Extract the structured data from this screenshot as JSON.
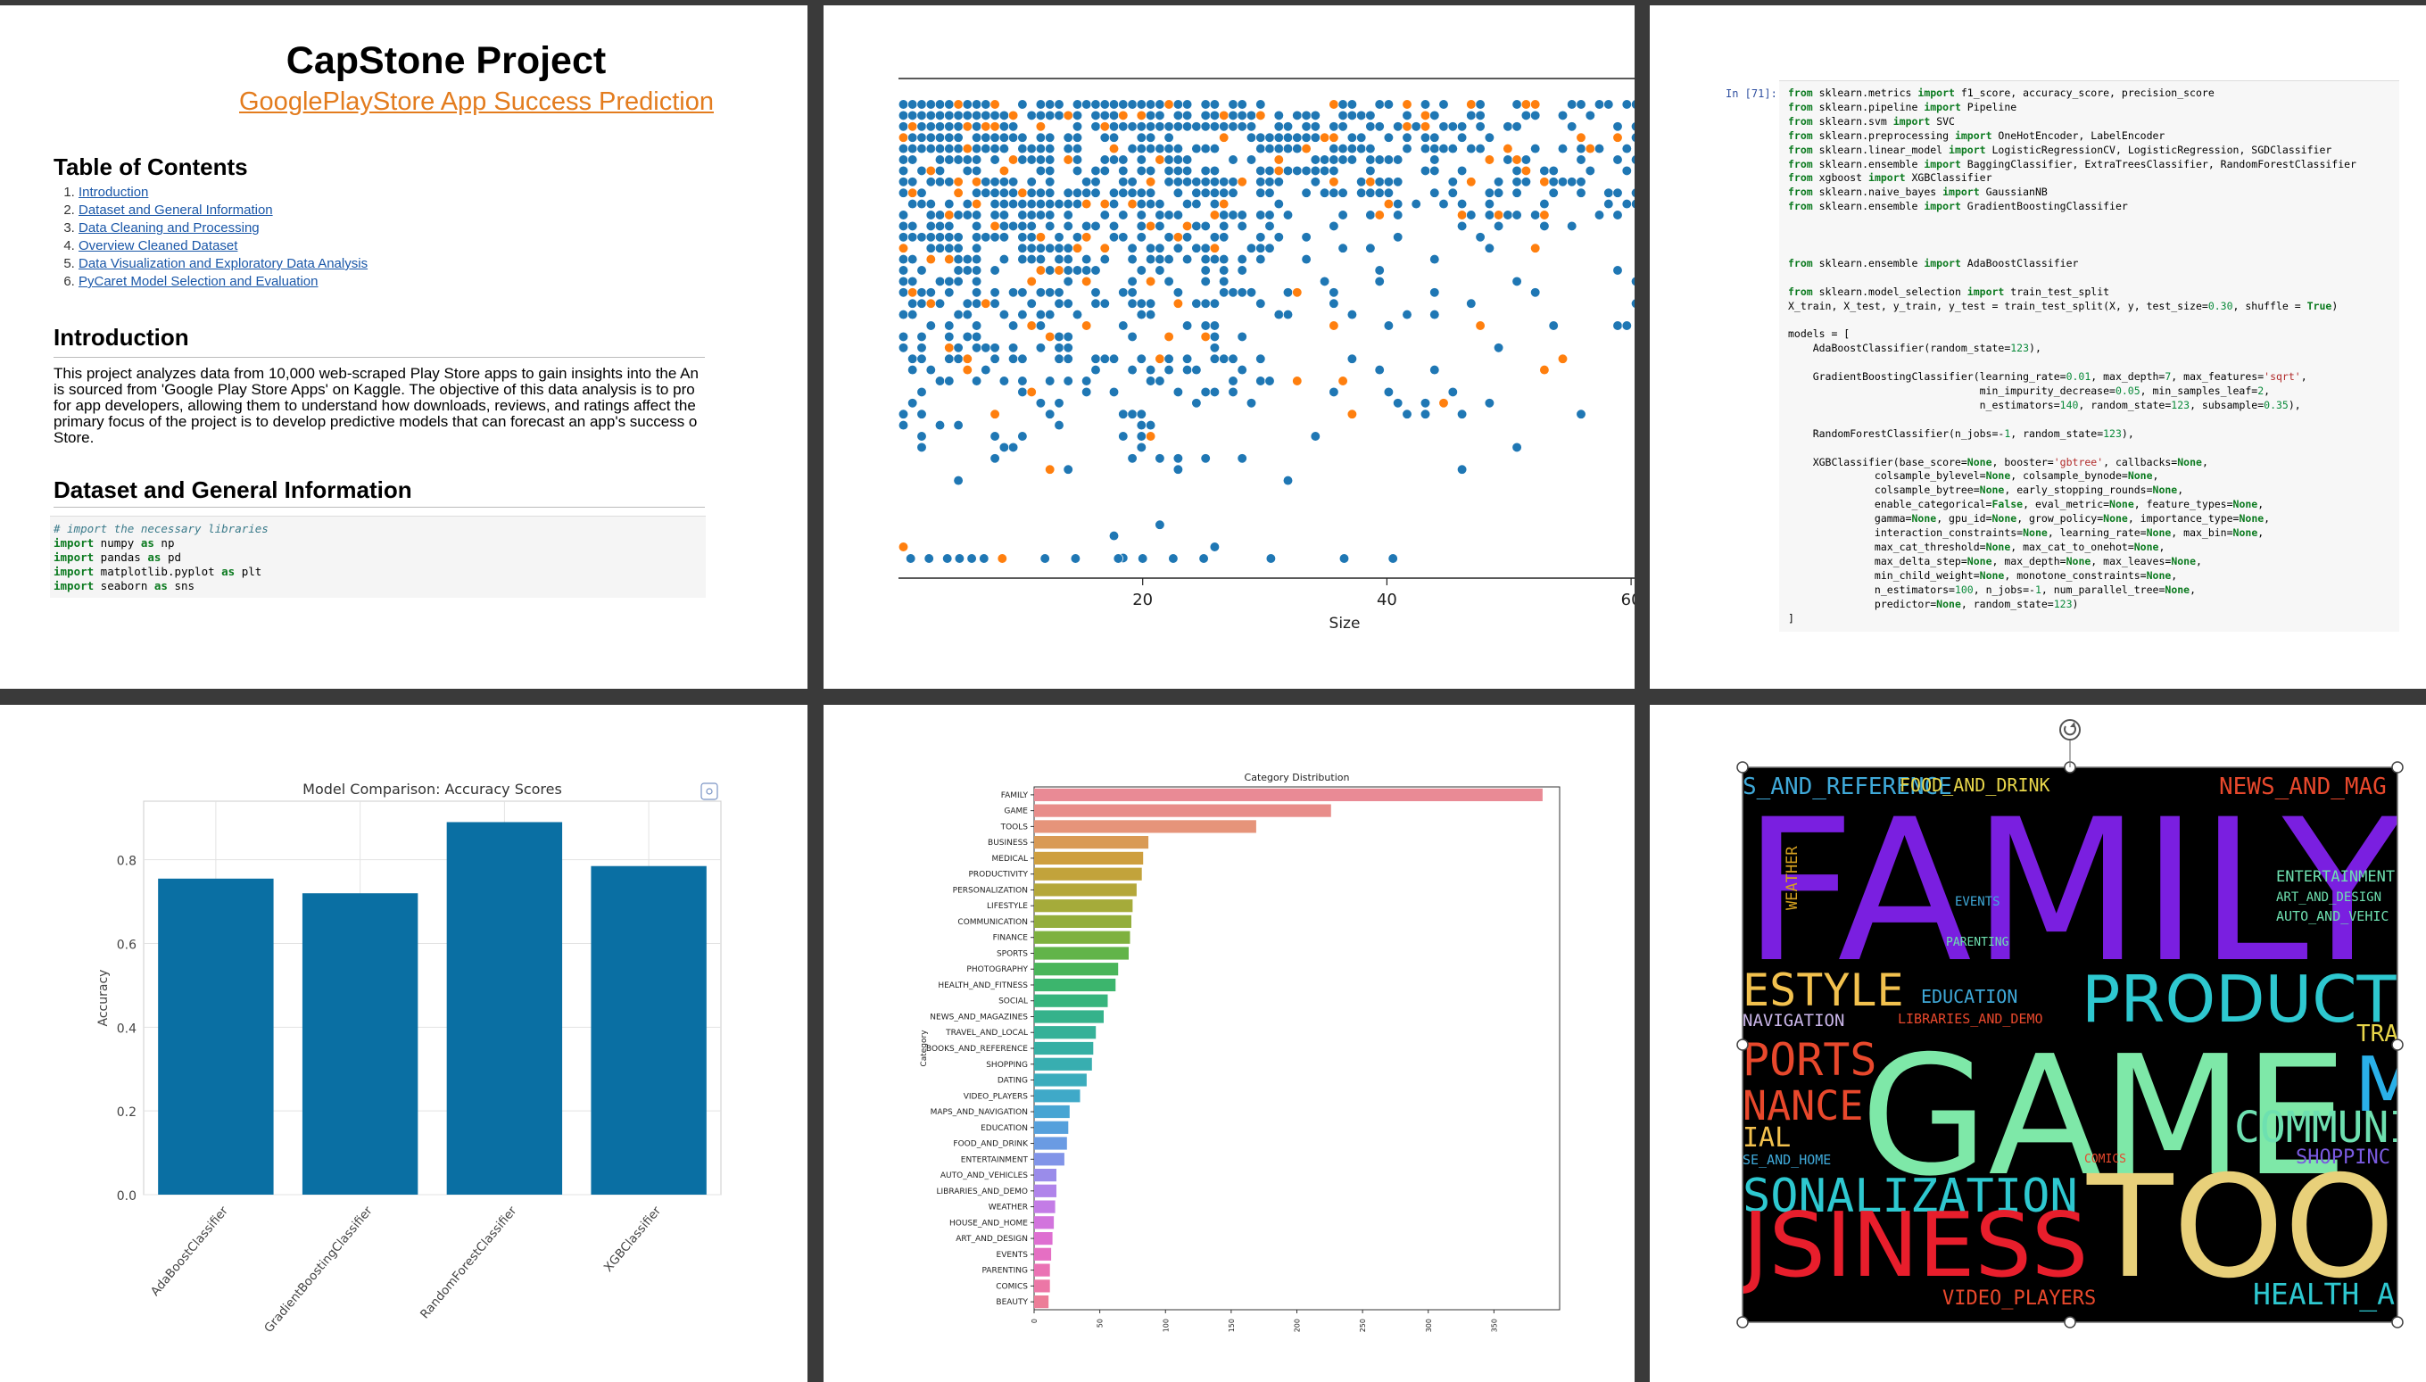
{
  "notebook": {
    "title": "CapStone Project",
    "subtitle": "GooglePlayStore App Success Prediction",
    "toc_heading": "Table of Contents",
    "toc": [
      {
        "num": "1.",
        "label": "Introduction"
      },
      {
        "num": "2.",
        "label": "Dataset and General Information"
      },
      {
        "num": "3.",
        "label": "Data Cleaning and Processing"
      },
      {
        "num": "4.",
        "label": "Overview Cleaned Dataset"
      },
      {
        "num": "5.",
        "label": "Data Visualization and Exploratory Data Analysis"
      },
      {
        "num": "6.",
        "label": "PyCaret Model Selection and Evaluation"
      }
    ],
    "intro_heading": "Introduction",
    "intro_lines": [
      "This project analyzes data from 10,000 web-scraped Play Store apps to gain insights into the An",
      "is sourced from 'Google Play Store Apps' on Kaggle. The objective of this data analysis is to pro",
      "for app developers, allowing them to understand how downloads, reviews, and ratings affect the",
      "primary focus of the project is to develop predictive models that can forecast an app's success o",
      "Store."
    ],
    "dataset_heading": "Dataset and General Information",
    "code_comment": "# import the necessary libraries",
    "imports": [
      {
        "kw1": "import",
        "mod": " numpy ",
        "kw2": "as",
        "alias": " np"
      },
      {
        "kw1": "import",
        "mod": " pandas ",
        "kw2": "as",
        "alias": " pd"
      },
      {
        "kw1": "import",
        "mod": " matplotlib.pyplot ",
        "kw2": "as",
        "alias": " plt"
      },
      {
        "kw1": "import",
        "mod": " seaborn ",
        "kw2": "as",
        "alias": " sns"
      }
    ]
  },
  "code_cell": {
    "prompt": "In [71]:",
    "lines": [
      "from sklearn.metrics import f1_score, accuracy_score, precision_score",
      "from sklearn.pipeline import Pipeline",
      "from sklearn.svm import SVC",
      "from sklearn.preprocessing import OneHotEncoder, LabelEncoder",
      "from sklearn.linear_model import LogisticRegressionCV, LogisticRegression, SGDClassifier",
      "from sklearn.ensemble import BaggingClassifier, ExtraTreesClassifier, RandomForestClassifier",
      "from xgboost import XGBClassifier",
      "from sklearn.naive_bayes import GaussianNB",
      "from sklearn.ensemble import GradientBoostingClassifier",
      "",
      "",
      "",
      "from sklearn.ensemble import AdaBoostClassifier",
      "",
      "from sklearn.model_selection import train_test_split",
      "X_train, X_test, y_train, y_test = train_test_split(X, y, test_size=0.30, shuffle = True)",
      "",
      "models = [",
      "    AdaBoostClassifier(random_state=123),",
      "",
      "    GradientBoostingClassifier(learning_rate=0.01, max_depth=7, max_features='sqrt',",
      "                               min_impurity_decrease=0.05, min_samples_leaf=2,",
      "                               n_estimators=140, random_state=123, subsample=0.35),",
      "",
      "    RandomForestClassifier(n_jobs=-1, random_state=123),",
      "",
      "    XGBClassifier(base_score=None, booster='gbtree', callbacks=None,",
      "              colsample_bylevel=None, colsample_bynode=None,",
      "              colsample_bytree=None, early_stopping_rounds=None,",
      "              enable_categorical=False, eval_metric=None, feature_types=None,",
      "              gamma=None, gpu_id=None, grow_policy=None, importance_type=None,",
      "              interaction_constraints=None, learning_rate=None, max_bin=None,",
      "              max_cat_threshold=None, max_cat_to_onehot=None,",
      "              max_delta_step=None, max_depth=None, max_leaves=None,",
      "              min_child_weight=None, monotone_constraints=None,",
      "              n_estimators=100, n_jobs=-1, num_parallel_tree=None,",
      "              predictor=None, random_state=123)",
      "]"
    ]
  },
  "chart_data": [
    {
      "type": "scatter",
      "title": "",
      "xlabel": "Size",
      "ylabel": "",
      "xticks": [
        20,
        40,
        60
      ],
      "xlim": [
        0,
        73
      ],
      "colors": [
        "#1f77b4",
        "#ff7f0e"
      ]
    },
    {
      "type": "bar",
      "title": "Model Comparison: Accuracy Scores",
      "xlabel": "",
      "ylabel": "Accuracy",
      "categories": [
        "AdaBoostClassifier",
        "GradientBoostingClassifier",
        "RandomForestClassifier",
        "XGBClassifier"
      ],
      "values": [
        0.755,
        0.72,
        0.89,
        0.785
      ],
      "ylim": [
        0,
        0.94
      ],
      "yticks": [
        "0.0",
        "0.2",
        "0.4",
        "0.6",
        "0.8"
      ],
      "color": "#0a6fa3"
    },
    {
      "type": "bar",
      "orientation": "horizontal",
      "title": "Category Distribution",
      "ylabel": "Category",
      "xlabel": "",
      "categories": [
        "FAMILY",
        "GAME",
        "TOOLS",
        "BUSINESS",
        "MEDICAL",
        "PRODUCTIVITY",
        "PERSONALIZATION",
        "LIFESTYLE",
        "COMMUNICATION",
        "FINANCE",
        "SPORTS",
        "PHOTOGRAPHY",
        "HEALTH_AND_FITNESS",
        "SOCIAL",
        "NEWS_AND_MAGAZINES",
        "TRAVEL_AND_LOCAL",
        "BOOKS_AND_REFERENCE",
        "SHOPPING",
        "DATING",
        "VIDEO_PLAYERS",
        "MAPS_AND_NAVIGATION",
        "EDUCATION",
        "FOOD_AND_DRINK",
        "ENTERTAINMENT",
        "AUTO_AND_VEHICLES",
        "LIBRARIES_AND_DEMO",
        "WEATHER",
        "HOUSE_AND_HOME",
        "ART_AND_DESIGN",
        "EVENTS",
        "PARENTING",
        "COMICS",
        "BEAUTY"
      ],
      "values": [
        387,
        226,
        169,
        87,
        83,
        82,
        78,
        75,
        74,
        73,
        72,
        64,
        62,
        56,
        53,
        47,
        45,
        44,
        40,
        35,
        27,
        26,
        25,
        23,
        17,
        17,
        16,
        15,
        14,
        13,
        12,
        12,
        11
      ],
      "xlim": [
        0,
        400
      ],
      "xticks": [
        "0",
        "50",
        "100",
        "150",
        "200",
        "250",
        "300",
        "350"
      ]
    }
  ],
  "wordcloud": {
    "words": [
      {
        "text": "S_AND_REFERENCE",
        "color": "#3fa9d9"
      },
      {
        "text": "FOOD_AND_DRINK",
        "color": "#e8d64a"
      },
      {
        "text": "NEWS_AND_MAG",
        "color": "#e8482c"
      },
      {
        "text": "FAMILY",
        "color": "#7a1fe0"
      },
      {
        "text": "WEATHER",
        "color": "#d4a020"
      },
      {
        "text": "ENTERTAINMENT",
        "color": "#6ee0b0"
      },
      {
        "text": "ART_AND_DESIGN",
        "color": "#6ee0b0"
      },
      {
        "text": "AUTO_AND_VEHIC",
        "color": "#6ee0b0"
      },
      {
        "text": "EVENTS",
        "color": "#3fa9d9"
      },
      {
        "text": "PARENTING",
        "color": "#6ee0b0"
      },
      {
        "text": "ESTYLE",
        "color": "#f2c14e"
      },
      {
        "text": "EDUCATION",
        "color": "#3fa9d9"
      },
      {
        "text": "NAVIGATION",
        "color": "#c9b5e8"
      },
      {
        "text": "LIBRARIES_AND_DEMO",
        "color": "#e8482c"
      },
      {
        "text": "PRODUCTI",
        "color": "#2ec8d0"
      },
      {
        "text": "TRAVE",
        "color": "#e8d64a"
      },
      {
        "text": "PORTS",
        "color": "#e8482c"
      },
      {
        "text": "GAME",
        "color": "#7ee8a8"
      },
      {
        "text": "MED",
        "color": "#2ab0e8"
      },
      {
        "text": "NANCE",
        "color": "#e8482c"
      },
      {
        "text": "IAL",
        "color": "#f2c14e"
      },
      {
        "text": "COMMUNI",
        "color": "#6ee0b0"
      },
      {
        "text": "SE_AND_HOME",
        "color": "#3fa9d9"
      },
      {
        "text": "COMICS",
        "color": "#e8482c"
      },
      {
        "text": "SHOPPINC",
        "color": "#7a5ae0"
      },
      {
        "text": "SONALIZATION",
        "color": "#2ec8d0"
      },
      {
        "text": "TOOL",
        "color": "#e8d07a"
      },
      {
        "text": "JSINESS",
        "color": "#e81e2c"
      },
      {
        "text": "VIDEO_PLAYERS",
        "color": "#e8482c"
      },
      {
        "text": "HEALTH_A",
        "color": "#2ec8d0"
      }
    ]
  }
}
